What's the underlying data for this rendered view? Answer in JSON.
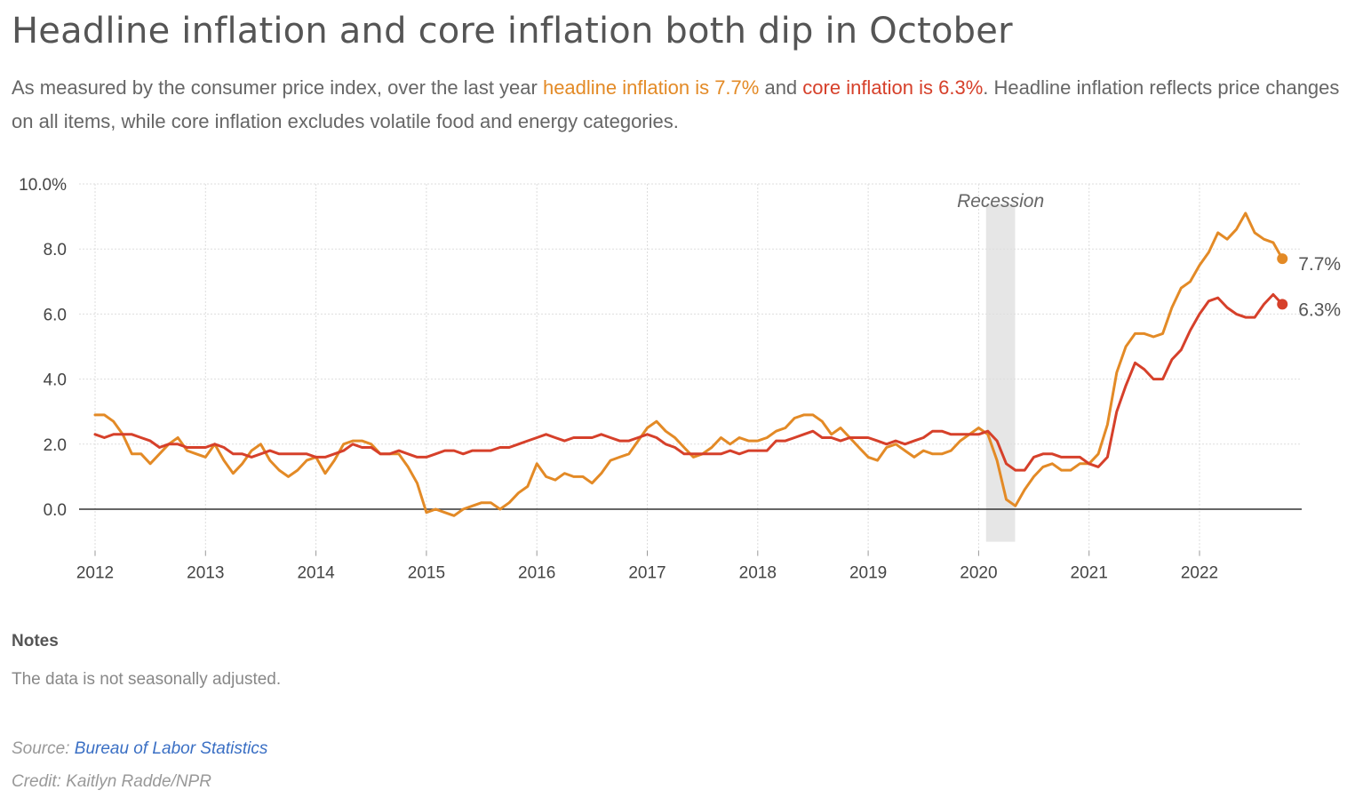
{
  "title": "Headline inflation and core inflation both dip in October",
  "subtitle": {
    "part1": "As measured by the consumer price index, over the last year ",
    "headline_phrase": "headline inflation is 7.7%",
    "part2": " and ",
    "core_phrase": "core inflation is 6.3%",
    "part3": ". Headline inflation reflects price changes on all items, while core inflation excludes volatile food and energy categories."
  },
  "notes": {
    "heading": "Notes",
    "text": "The data is not seasonally adjusted."
  },
  "source": {
    "label": "Source: ",
    "link_text": "Bureau of Labor Statistics"
  },
  "credit": "Credit: Kaitlyn Radde/NPR",
  "colors": {
    "headline": "#e38a26",
    "core": "#d6402a",
    "recession": "#e6e6e6",
    "grid": "#dddddd",
    "zero_line": "#333333",
    "tick_text": "#444444"
  },
  "chart_data": {
    "type": "line",
    "x_start": "2012-01",
    "x_end": "2022-10",
    "x_frequency": "monthly",
    "xticks": [
      "2012",
      "2013",
      "2014",
      "2015",
      "2016",
      "2017",
      "2018",
      "2019",
      "2020",
      "2021",
      "2022"
    ],
    "yticks": [
      "10.0%",
      "8.0",
      "6.0",
      "4.0",
      "2.0",
      "0.0"
    ],
    "yticks_values": [
      10,
      8,
      6,
      4,
      2,
      0
    ],
    "ylim": [
      -1,
      10
    ],
    "grid": true,
    "annotation": {
      "text": "Recession",
      "start": "2020-02",
      "end": "2020-04"
    },
    "end_labels": [
      "7.7%",
      "6.3%"
    ],
    "series": [
      {
        "key": "headline",
        "values": [
          2.9,
          2.9,
          2.7,
          2.3,
          1.7,
          1.7,
          1.4,
          1.7,
          2.0,
          2.2,
          1.8,
          1.7,
          1.6,
          2.0,
          1.5,
          1.1,
          1.4,
          1.8,
          2.0,
          1.5,
          1.2,
          1.0,
          1.2,
          1.5,
          1.6,
          1.1,
          1.5,
          2.0,
          2.1,
          2.1,
          2.0,
          1.7,
          1.7,
          1.7,
          1.3,
          0.8,
          -0.1,
          0.0,
          -0.1,
          -0.2,
          0.0,
          0.1,
          0.2,
          0.2,
          0.0,
          0.2,
          0.5,
          0.7,
          1.4,
          1.0,
          0.9,
          1.1,
          1.0,
          1.0,
          0.8,
          1.1,
          1.5,
          1.6,
          1.7,
          2.1,
          2.5,
          2.7,
          2.4,
          2.2,
          1.9,
          1.6,
          1.7,
          1.9,
          2.2,
          2.0,
          2.2,
          2.1,
          2.1,
          2.2,
          2.4,
          2.5,
          2.8,
          2.9,
          2.9,
          2.7,
          2.3,
          2.5,
          2.2,
          1.9,
          1.6,
          1.5,
          1.9,
          2.0,
          1.8,
          1.6,
          1.8,
          1.7,
          1.7,
          1.8,
          2.1,
          2.3,
          2.5,
          2.3,
          1.5,
          0.3,
          0.1,
          0.6,
          1.0,
          1.3,
          1.4,
          1.2,
          1.2,
          1.4,
          1.4,
          1.7,
          2.6,
          4.2,
          5.0,
          5.4,
          5.4,
          5.3,
          5.4,
          6.2,
          6.8,
          7.0,
          7.5,
          7.9,
          8.5,
          8.3,
          8.6,
          9.1,
          8.5,
          8.3,
          8.2,
          7.7
        ]
      },
      {
        "key": "core",
        "values": [
          2.3,
          2.2,
          2.3,
          2.3,
          2.3,
          2.2,
          2.1,
          1.9,
          2.0,
          2.0,
          1.9,
          1.9,
          1.9,
          2.0,
          1.9,
          1.7,
          1.7,
          1.6,
          1.7,
          1.8,
          1.7,
          1.7,
          1.7,
          1.7,
          1.6,
          1.6,
          1.7,
          1.8,
          2.0,
          1.9,
          1.9,
          1.7,
          1.7,
          1.8,
          1.7,
          1.6,
          1.6,
          1.7,
          1.8,
          1.8,
          1.7,
          1.8,
          1.8,
          1.8,
          1.9,
          1.9,
          2.0,
          2.1,
          2.2,
          2.3,
          2.2,
          2.1,
          2.2,
          2.2,
          2.2,
          2.3,
          2.2,
          2.1,
          2.1,
          2.2,
          2.3,
          2.2,
          2.0,
          1.9,
          1.7,
          1.7,
          1.7,
          1.7,
          1.7,
          1.8,
          1.7,
          1.8,
          1.8,
          1.8,
          2.1,
          2.1,
          2.2,
          2.3,
          2.4,
          2.2,
          2.2,
          2.1,
          2.2,
          2.2,
          2.2,
          2.1,
          2.0,
          2.1,
          2.0,
          2.1,
          2.2,
          2.4,
          2.4,
          2.3,
          2.3,
          2.3,
          2.3,
          2.4,
          2.1,
          1.4,
          1.2,
          1.2,
          1.6,
          1.7,
          1.7,
          1.6,
          1.6,
          1.6,
          1.4,
          1.3,
          1.6,
          3.0,
          3.8,
          4.5,
          4.3,
          4.0,
          4.0,
          4.6,
          4.9,
          5.5,
          6.0,
          6.4,
          6.5,
          6.2,
          6.0,
          5.9,
          5.9,
          6.3,
          6.6,
          6.3
        ]
      }
    ]
  }
}
